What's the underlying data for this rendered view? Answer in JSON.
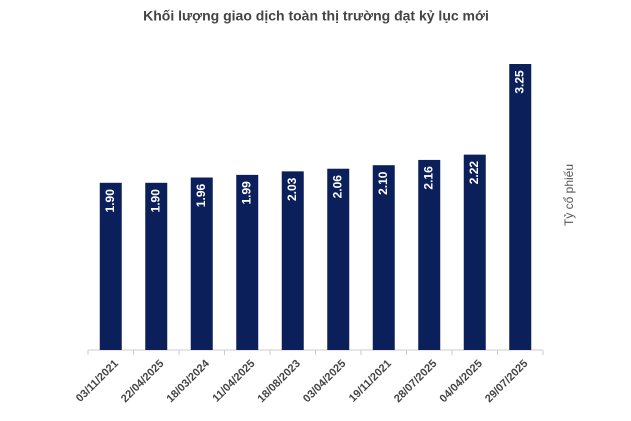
{
  "chart_data": {
    "type": "bar",
    "title": "Khối lượng giao dịch toàn thị trường đạt kỷ lục mới",
    "y_label": "Tỷ cổ phiếu",
    "categories": [
      "03/11/2021",
      "22/04/2025",
      "18/03/2024",
      "11/04/2025",
      "18/08/2023",
      "03/04/2025",
      "19/11/2021",
      "28/07/2025",
      "04/04/2025",
      "29/07/2025"
    ],
    "values": [
      1.9,
      1.9,
      1.96,
      1.99,
      2.03,
      2.06,
      2.1,
      2.16,
      2.22,
      3.25
    ],
    "value_labels": [
      "1.90",
      "1.90",
      "1.96",
      "1.99",
      "2.03",
      "2.06",
      "2.10",
      "2.16",
      "2.22",
      "3.25"
    ],
    "color": "#0b1f5b",
    "ylim": [
      0,
      3.5
    ]
  }
}
